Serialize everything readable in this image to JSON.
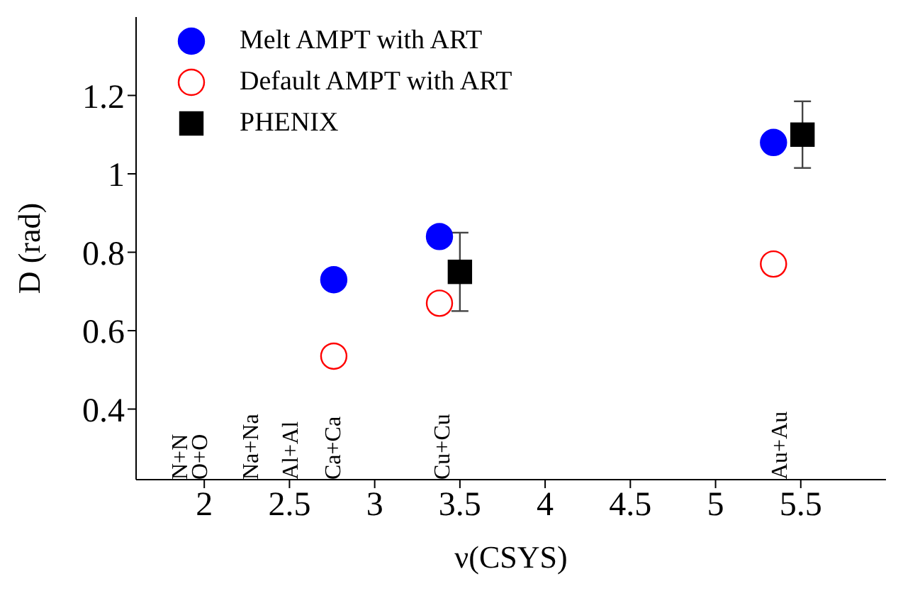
{
  "chart_data": {
    "type": "scatter",
    "xlabel": "ν(CSYS)",
    "ylabel": "D (rad)",
    "xlim": [
      1.6,
      6.0
    ],
    "ylim": [
      0.22,
      1.4
    ],
    "xticks": [
      2,
      2.5,
      3,
      3.5,
      4,
      4.5,
      5,
      5.5
    ],
    "yticks": [
      0.4,
      0.6,
      0.8,
      1,
      1.2
    ],
    "legend": "top left",
    "grid": false,
    "series": [
      {
        "name": "Melt AMPT with ART",
        "color": "#0000ff",
        "marker": "circle",
        "x": [
          2.76,
          3.38,
          5.34
        ],
        "values": [
          0.73,
          0.84,
          1.08
        ]
      },
      {
        "name": "Default AMPT with ART",
        "color": "#ff0000",
        "marker": "circle",
        "x": [
          2.76,
          3.38,
          5.34
        ],
        "values": [
          0.535,
          0.67,
          0.77
        ]
      },
      {
        "name": "PHENIX",
        "color": "#000000",
        "marker": "square",
        "x": [
          3.5,
          5.51
        ],
        "values": [
          0.75,
          1.1
        ],
        "errors": [
          0.1,
          0.085
        ]
      }
    ],
    "annotations": [
      "N+N",
      "O+O",
      "Na+Na",
      "Al+Al",
      "Ca+Ca",
      "Cu+Cu",
      "Au+Au"
    ]
  }
}
